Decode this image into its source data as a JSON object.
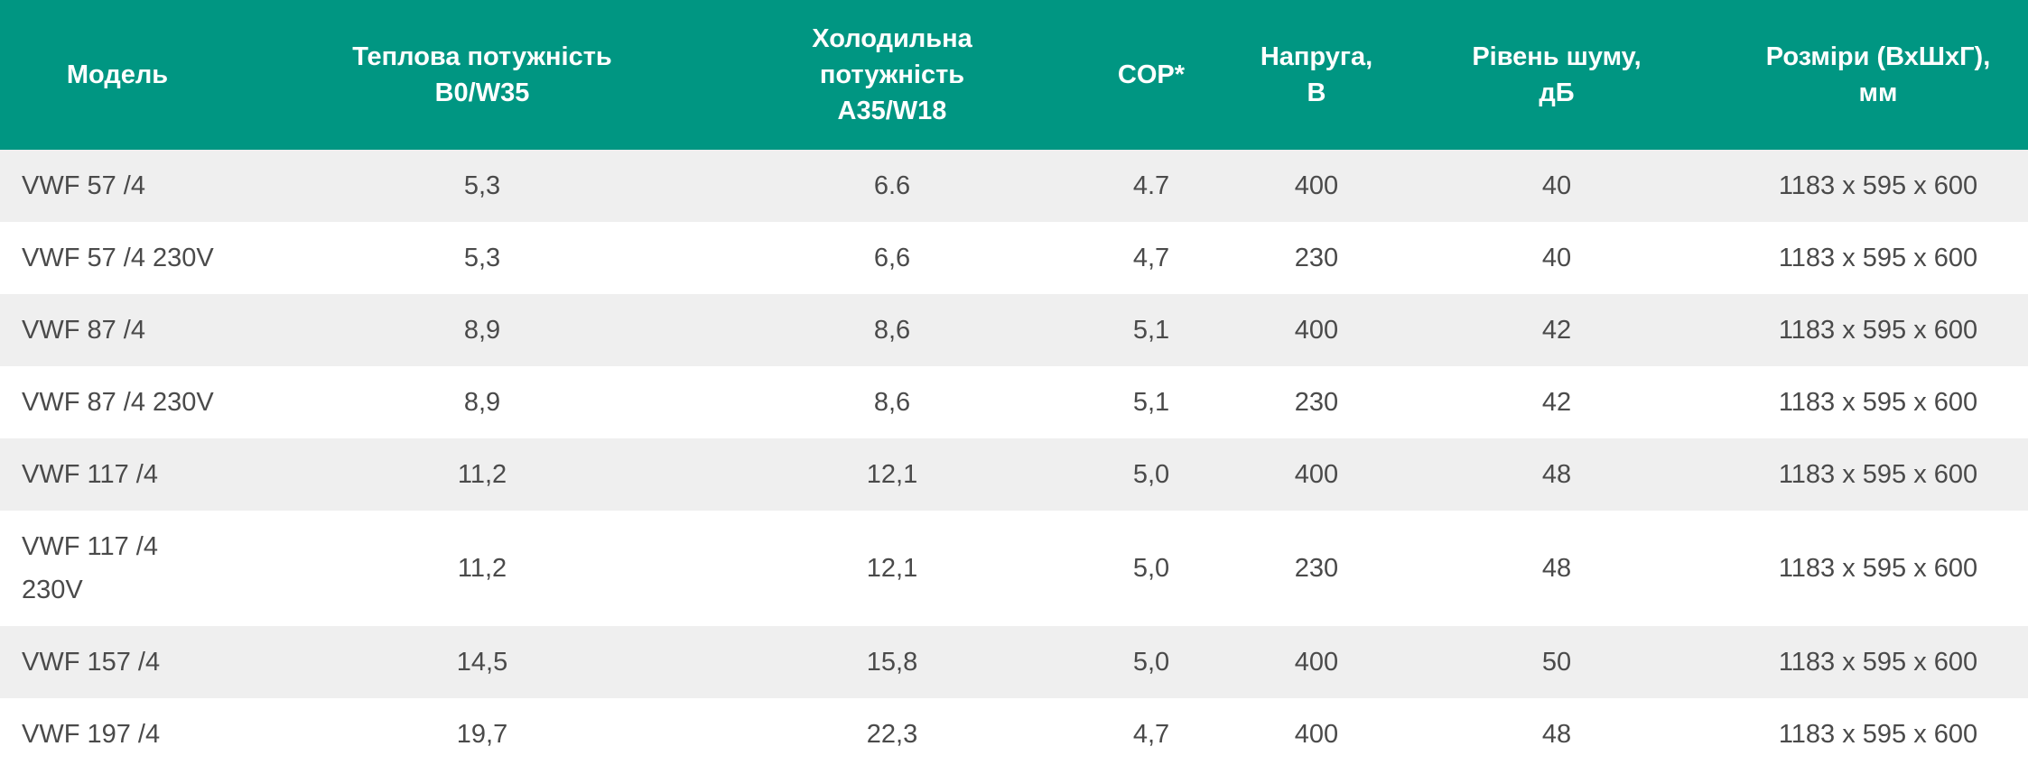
{
  "table": {
    "headers": [
      [
        "Модель"
      ],
      [
        "Теплова потужність",
        "B0/W35"
      ],
      [
        "Холодильна",
        "потужність",
        "A35/W18"
      ],
      [
        "COP*"
      ],
      [
        "Напруга,",
        "В"
      ],
      [
        "Рівень шуму,",
        "дБ"
      ],
      [
        "Розміри (ВхШхГ),",
        "мм"
      ]
    ],
    "rows": [
      [
        "VWF 57 /4",
        "5,3",
        "6.6",
        "4.7",
        "400",
        "40",
        "1183 x 595 x 600"
      ],
      [
        "VWF 57 /4 230V",
        "5,3",
        "6,6",
        "4,7",
        "230",
        "40",
        "1183 x 595 x 600"
      ],
      [
        "VWF 87 /4",
        "8,9",
        "8,6",
        "5,1",
        "400",
        "42",
        "1183 x 595 x 600"
      ],
      [
        "VWF 87 /4 230V",
        "8,9",
        "8,6",
        "5,1",
        "230",
        "42",
        "1183 x 595 x 600"
      ],
      [
        "VWF 117 /4",
        "11,2",
        "12,1",
        "5,0",
        "400",
        "48",
        "1183 x 595 x 600"
      ],
      [
        "VWF 117 /4 230V",
        "11,2",
        "12,1",
        "5,0",
        "230",
        "48",
        "1183 x 595 x 600"
      ],
      [
        "VWF 157 /4",
        "14,5",
        "15,8",
        "5,0",
        "400",
        "50",
        "1183 x 595 x 600"
      ],
      [
        "VWF 197 /4",
        "19,7",
        "22,3",
        "4,7",
        "400",
        "48",
        "1183 x 595 x 600"
      ]
    ]
  }
}
